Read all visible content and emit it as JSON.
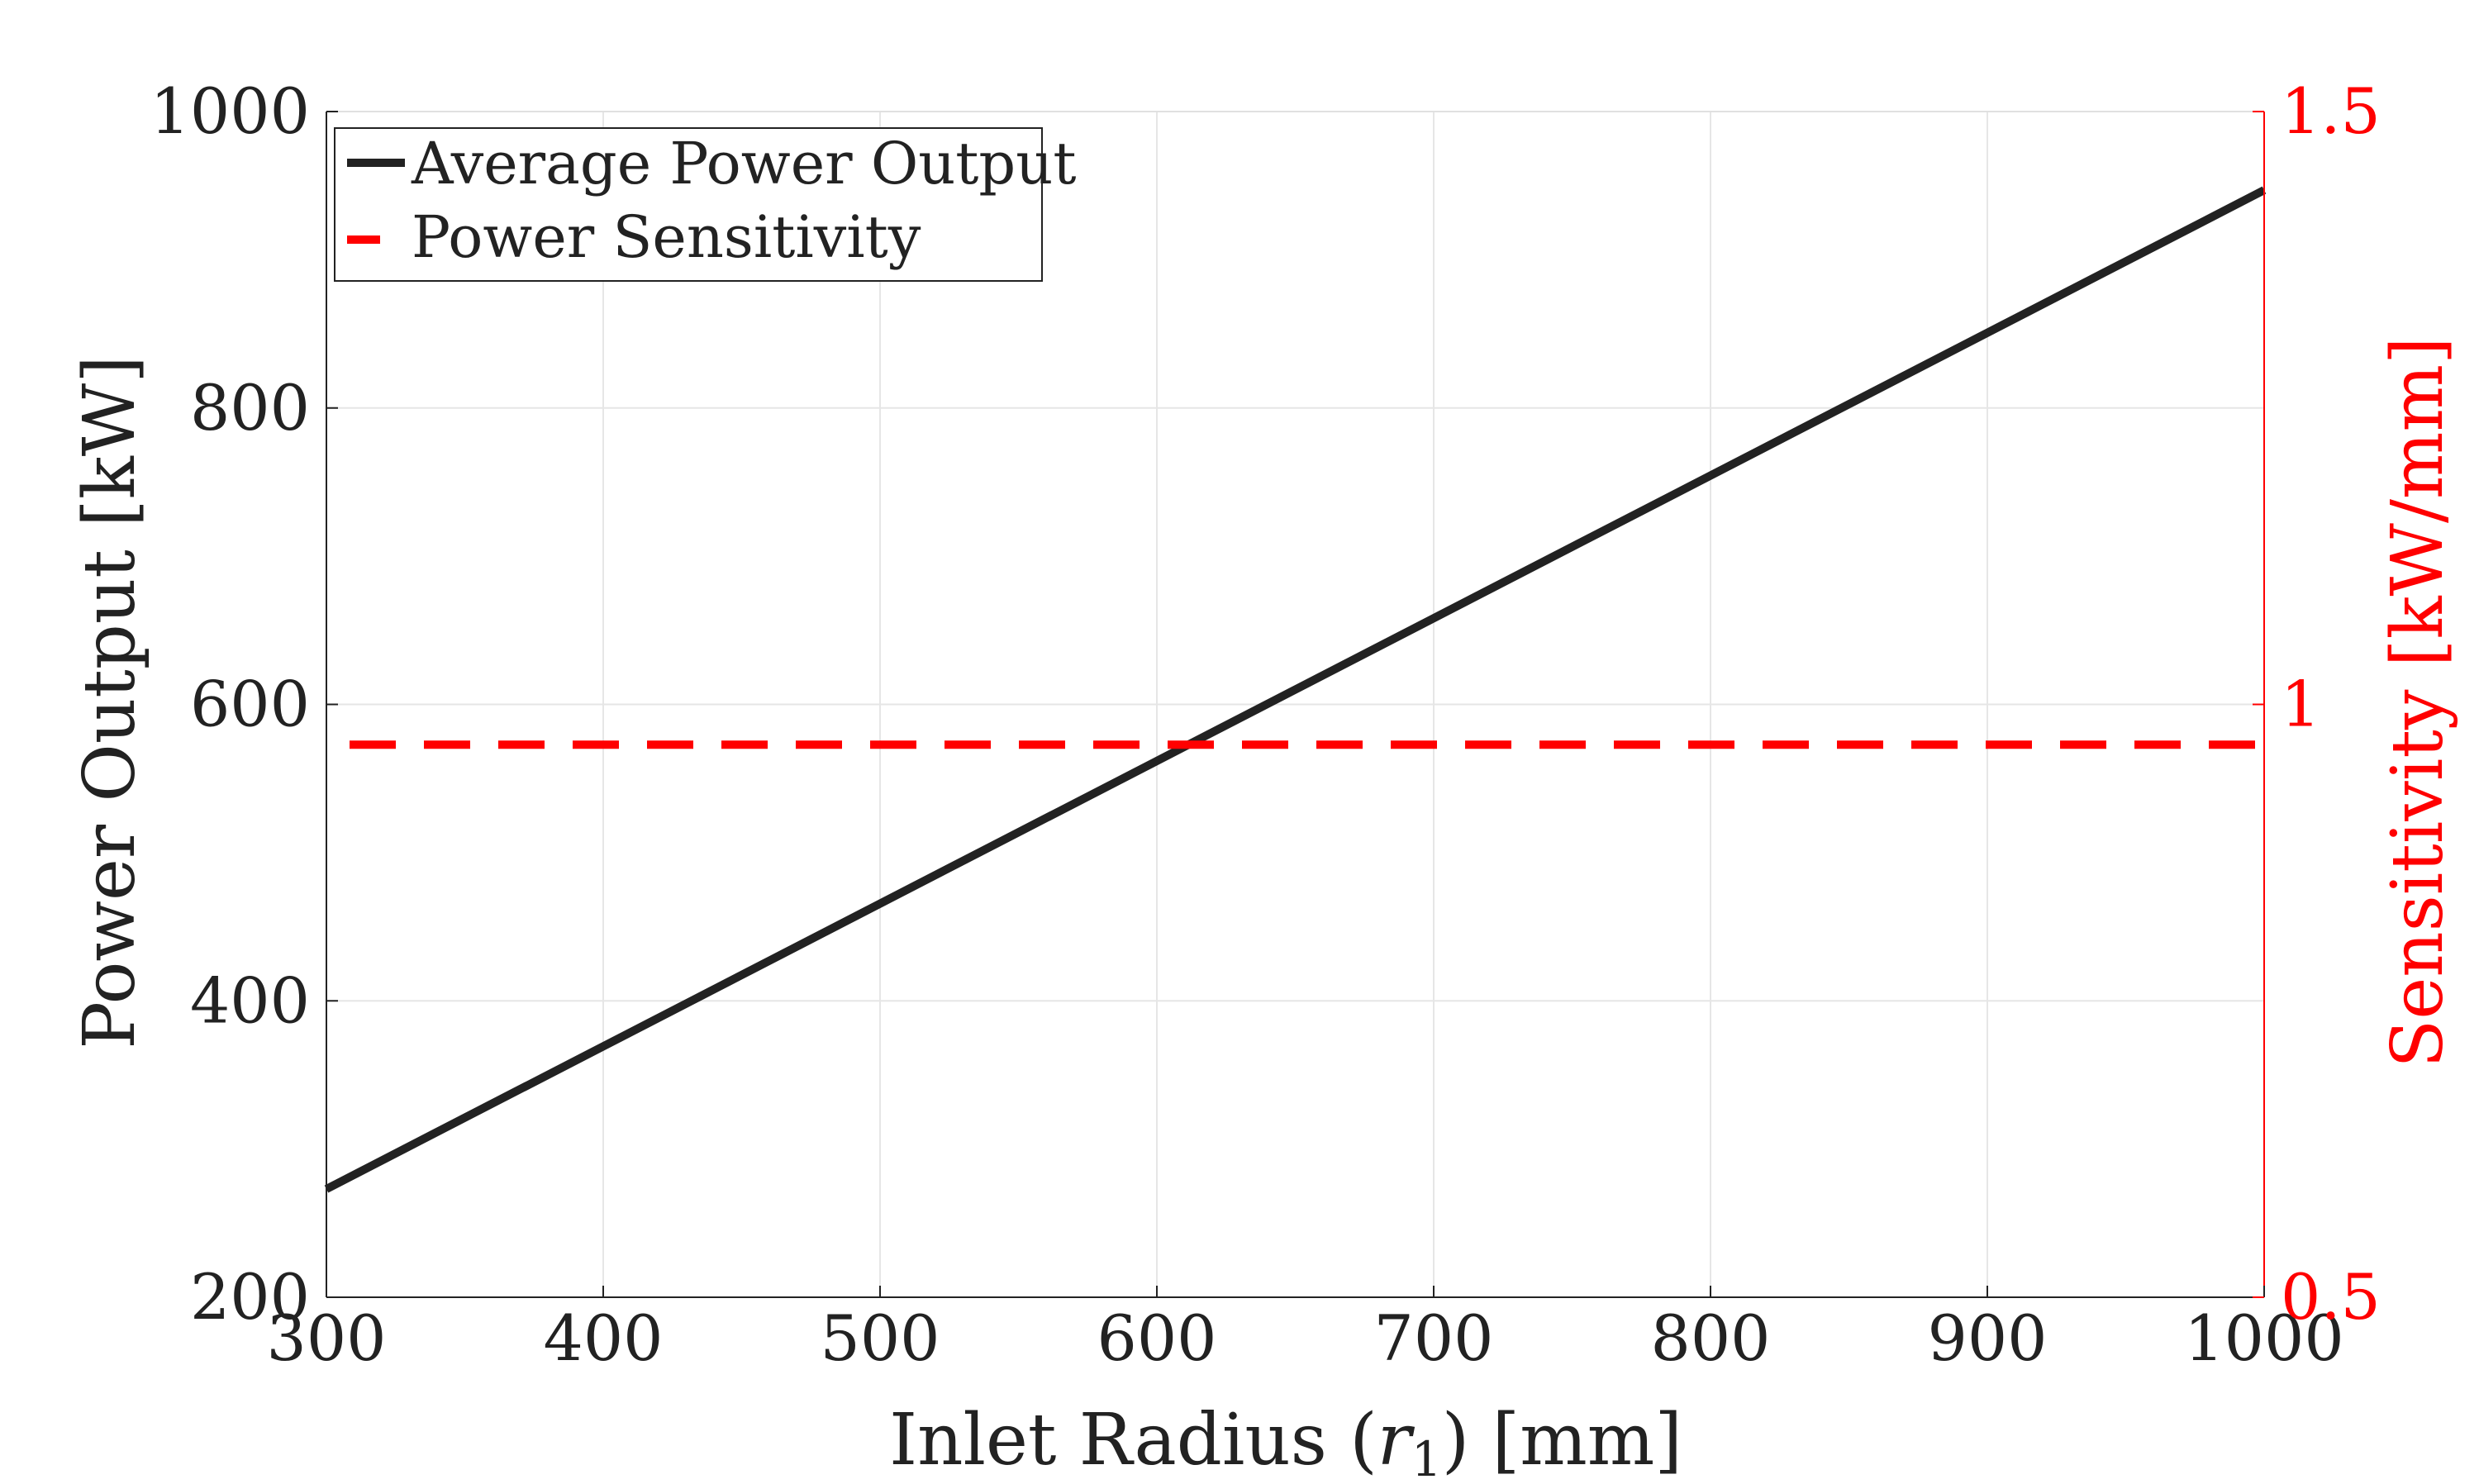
{
  "chart_data": {
    "type": "line",
    "title": "",
    "xlabel": "Inlet Radius (r1) [mm]",
    "xlabel_main": "Inlet Radius (",
    "xlabel_var": "r",
    "xlabel_sub": "1",
    "xlabel_tail": ") [mm]",
    "ylabel": "Power Output [kW]",
    "ylabel_right": "Sensitivity [kW/mm]",
    "xlim": [
      300,
      1000
    ],
    "ylim": [
      200,
      1000
    ],
    "ylim_right": [
      0.5,
      1.5
    ],
    "x_ticks": [
      "300",
      "400",
      "500",
      "600",
      "700",
      "800",
      "900",
      "1000"
    ],
    "y_ticks": [
      "200",
      "400",
      "600",
      "800",
      "1000"
    ],
    "y_ticks_right": [
      "0.5",
      "1",
      "1.5"
    ],
    "grid": true,
    "legend_position": "top-left",
    "series": [
      {
        "name": "Average Power Output",
        "axis": "left",
        "color": "#222222",
        "style": "solid",
        "x": [
          300,
          1000
        ],
        "y": [
          273,
          947
        ]
      },
      {
        "name": "Power Sensitivity",
        "axis": "right",
        "color": "#ff0000",
        "style": "dashed",
        "x": [
          300,
          1000
        ],
        "y": [
          0.966,
          0.966
        ]
      }
    ]
  }
}
